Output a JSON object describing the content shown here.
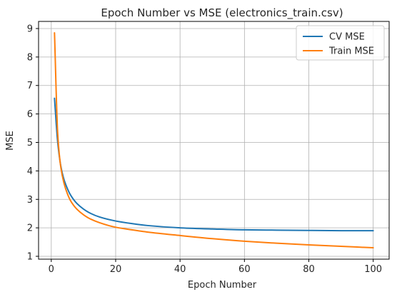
{
  "chart_data": {
    "type": "line",
    "title": "Epoch Number vs MSE (electronics_train.csv)",
    "xlabel": "Epoch Number",
    "ylabel": "MSE",
    "xlim": [
      -3.95,
      104.95
    ],
    "ylim": [
      0.9,
      9.25
    ],
    "xticks": [
      0,
      20,
      40,
      60,
      80,
      100
    ],
    "yticks": [
      1,
      2,
      3,
      4,
      5,
      6,
      7,
      8,
      9
    ],
    "grid": true,
    "legend_position": "top-right",
    "series": [
      {
        "name": "CV MSE",
        "color": "#1f77b4",
        "x": [
          1,
          2,
          3,
          4,
          5,
          6,
          8,
          10,
          12,
          15,
          20,
          25,
          30,
          40,
          50,
          60,
          70,
          80,
          90,
          100
        ],
        "y": [
          6.55,
          5.0,
          4.15,
          3.68,
          3.38,
          3.15,
          2.85,
          2.66,
          2.52,
          2.38,
          2.24,
          2.15,
          2.08,
          2.0,
          1.96,
          1.93,
          1.92,
          1.91,
          1.9,
          1.9
        ]
      },
      {
        "name": "Train MSE",
        "color": "#ff7f0e",
        "x": [
          1,
          2,
          3,
          4,
          5,
          6,
          8,
          10,
          12,
          15,
          20,
          25,
          30,
          40,
          50,
          60,
          70,
          80,
          90,
          100
        ],
        "y": [
          8.85,
          5.3,
          4.1,
          3.55,
          3.2,
          2.95,
          2.65,
          2.46,
          2.32,
          2.18,
          2.02,
          1.93,
          1.85,
          1.73,
          1.62,
          1.53,
          1.46,
          1.4,
          1.35,
          1.3
        ]
      }
    ]
  }
}
